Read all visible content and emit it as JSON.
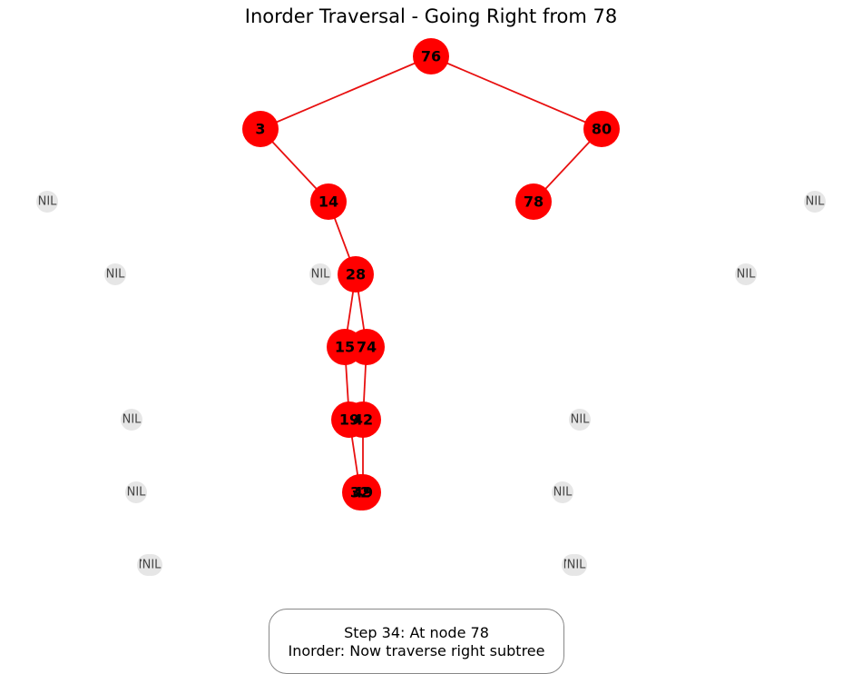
{
  "title": "Inorder Traversal - Going Right from 78",
  "status": {
    "line1": "Step 34: At node 78",
    "line2": "Inorder: Now traverse right subtree"
  },
  "colors": {
    "node_fill": "#ff0000",
    "edge": "#e81010",
    "nil_fill": "#e6e6e6",
    "nil_text": "#444444"
  },
  "nil_label": "NIL",
  "nodes": [
    {
      "key": "76"
    },
    {
      "key": "3"
    },
    {
      "key": "80"
    },
    {
      "key": "14"
    },
    {
      "key": "78"
    },
    {
      "key": "28"
    },
    {
      "key": "15"
    },
    {
      "key": "74"
    },
    {
      "key": "19"
    },
    {
      "key": "42"
    },
    {
      "key": "32"
    },
    {
      "key": "49"
    }
  ],
  "edges": [
    [
      "76",
      "3"
    ],
    [
      "76",
      "80"
    ],
    [
      "3",
      "14"
    ],
    [
      "80",
      "78"
    ],
    [
      "14",
      "28"
    ],
    [
      "28",
      "15"
    ],
    [
      "28",
      "74"
    ],
    [
      "15",
      "19"
    ],
    [
      "74",
      "42"
    ],
    [
      "19",
      "32"
    ],
    [
      "42",
      "49"
    ]
  ]
}
